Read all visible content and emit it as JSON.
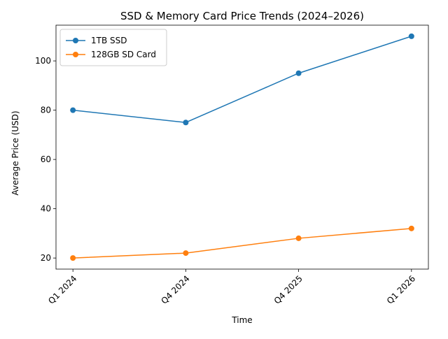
{
  "chart_data": {
    "type": "line",
    "title": "SSD & Memory Card Price Trends (2024–2026)",
    "xlabel": "Time",
    "ylabel": "Average Price (USD)",
    "categories": [
      "Q1 2024",
      "Q4 2024",
      "Q4 2025",
      "Q1 2026"
    ],
    "series": [
      {
        "name": "1TB SSD",
        "values": [
          80,
          75,
          95,
          110
        ],
        "color": "#1f77b4",
        "marker": "circle"
      },
      {
        "name": "128GB SD Card",
        "values": [
          20,
          22,
          28,
          32
        ],
        "color": "#ff7f0e",
        "marker": "circle"
      }
    ],
    "ylim": [
      15.5,
      114.5
    ],
    "yticks": [
      20,
      40,
      60,
      80,
      100
    ],
    "grid": false,
    "legend_position": "upper-left"
  }
}
